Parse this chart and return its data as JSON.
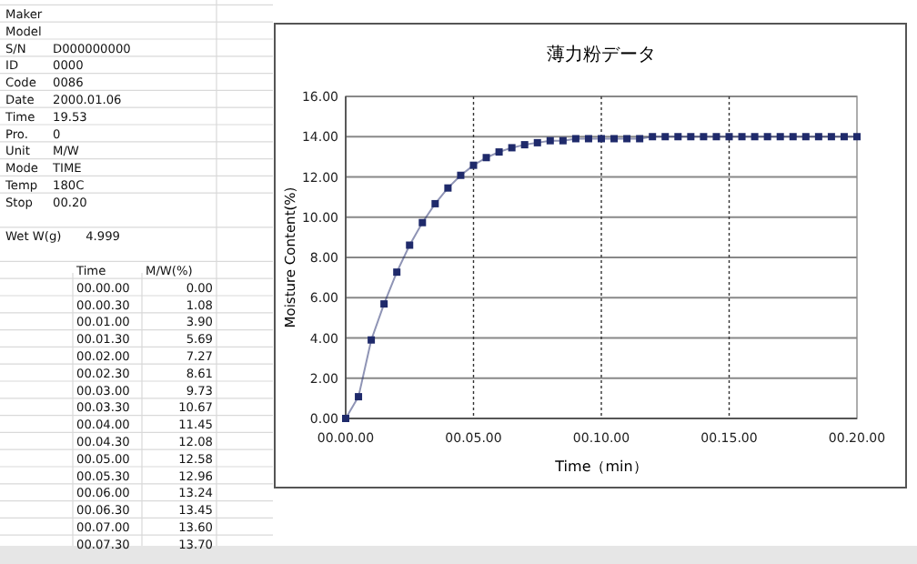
{
  "chart_data": {
    "type": "line",
    "title": "薄力粉データ",
    "xlabel": "Time（min）",
    "ylabel": "Moisture Content(%)",
    "categories": [
      "00.00.00",
      null,
      null,
      null,
      null,
      null,
      null,
      null,
      null,
      null,
      "00.05.00",
      null,
      null,
      null,
      null,
      null,
      null,
      null,
      null,
      null,
      "00.10.00",
      null,
      null,
      null,
      null,
      null,
      null,
      null,
      null,
      null,
      "00.15.00",
      null,
      null,
      null,
      null,
      null,
      null,
      null,
      null,
      null,
      "00.20.00"
    ],
    "series": [
      {
        "color": "#1f2a6b",
        "values": [
          0.0,
          1.08,
          3.9,
          5.69,
          7.27,
          8.61,
          9.73,
          10.67,
          11.45,
          12.08,
          12.58,
          12.96,
          13.24,
          13.45,
          13.6,
          13.7,
          13.8,
          13.8,
          13.9,
          13.9,
          13.9,
          13.9,
          13.9,
          13.9,
          14.0,
          14.0,
          14.0,
          14.0,
          14.0,
          14.0,
          14.0,
          14.0,
          14.0,
          14.0,
          14.0,
          14.0,
          14.0,
          14.0,
          14.0,
          14.0,
          14.0
        ]
      }
    ],
    "ylim": [
      0,
      16
    ],
    "yticks": [
      {
        "value": 0,
        "label": "0.00"
      },
      {
        "value": 2,
        "label": "2.00"
      },
      {
        "value": 4,
        "label": "4.00"
      },
      {
        "value": 6,
        "label": "6.00"
      },
      {
        "value": 8,
        "label": "8.00"
      },
      {
        "value": 10,
        "label": "10.00"
      },
      {
        "value": 12,
        "label": "12.00"
      },
      {
        "value": 14,
        "label": "14.00"
      },
      {
        "value": 16,
        "label": "16.00"
      }
    ],
    "grid": true,
    "marker": "square",
    "line_style": "solid",
    "annotations": [
      "Maker",
      "Model",
      "S/N\tD000000000",
      "ID\t0000",
      "Code\t0086",
      "Date\t2000.01.06",
      "Time\t19.53",
      "Pro.\t0",
      "Unit\tM/W",
      "Mode\tTIME",
      "Temp\t180C",
      "Stop\t00.20",
      "Wet W(g)\t4.999",
      "Time\tM/W(%)",
      "00.00.00\t0.00",
      "00.00.30\t1.08",
      "00.01.00\t3.90",
      "00.01.30\t5.69",
      "00.02.00\t7.27",
      "00.02.30\t8.61",
      "00.03.00\t9.73",
      "00.03.30\t10.67",
      "00.04.00\t11.45",
      "00.04.30\t12.08",
      "00.05.00\t12.58",
      "00.05.30\t12.96",
      "00.06.00\t13.24",
      "00.06.30\t13.45",
      "00.07.00\t13.60",
      "00.07.30\t13.70"
    ]
  }
}
